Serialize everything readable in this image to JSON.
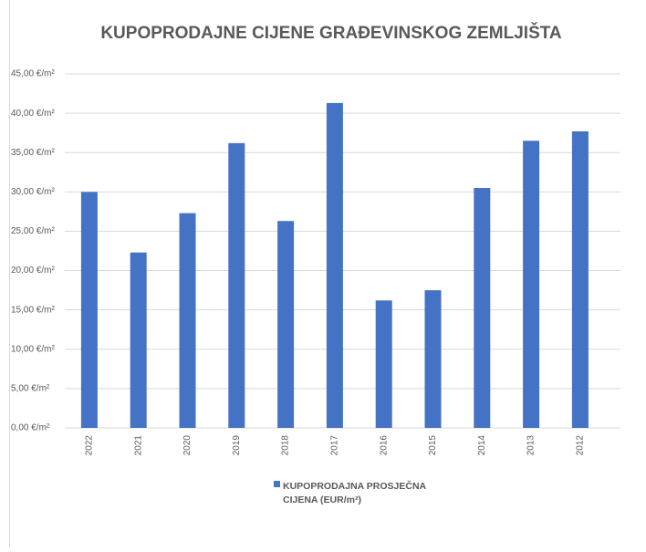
{
  "chart_data": {
    "type": "bar",
    "title": "KUPOPRODAJNE CIJENE GRAĐEVINSKOG ZEMLJIŠTA",
    "categories": [
      "2022",
      "2021",
      "2020",
      "2019",
      "2018",
      "2017",
      "2016",
      "2015",
      "2014",
      "2013",
      "2012"
    ],
    "series": [
      {
        "name": "KUPOPRODAJNA PROSJEČNA CIJENA (EUR/m²)",
        "color": "#4472c4",
        "values": [
          30.0,
          22.3,
          27.3,
          36.2,
          26.3,
          41.3,
          16.2,
          17.5,
          30.5,
          36.5,
          37.7
        ]
      }
    ],
    "ylim": [
      0,
      45
    ],
    "yticks": [
      {
        "value": 0,
        "label": "0,00 €/m²"
      },
      {
        "value": 5,
        "label": "5,00 €/m²"
      },
      {
        "value": 10,
        "label": "10,00 €/m²"
      },
      {
        "value": 15,
        "label": "15,00 €/m²"
      },
      {
        "value": 20,
        "label": "20,00 €/m²"
      },
      {
        "value": 25,
        "label": "25,00 €/m²"
      },
      {
        "value": 30,
        "label": "30,00 €/m²"
      },
      {
        "value": 35,
        "label": "35,00 €/m²"
      },
      {
        "value": 40,
        "label": "40,00 €/m²"
      },
      {
        "value": 45,
        "label": "45,00 €/m²"
      }
    ],
    "grid": true,
    "legend": "bottom"
  }
}
